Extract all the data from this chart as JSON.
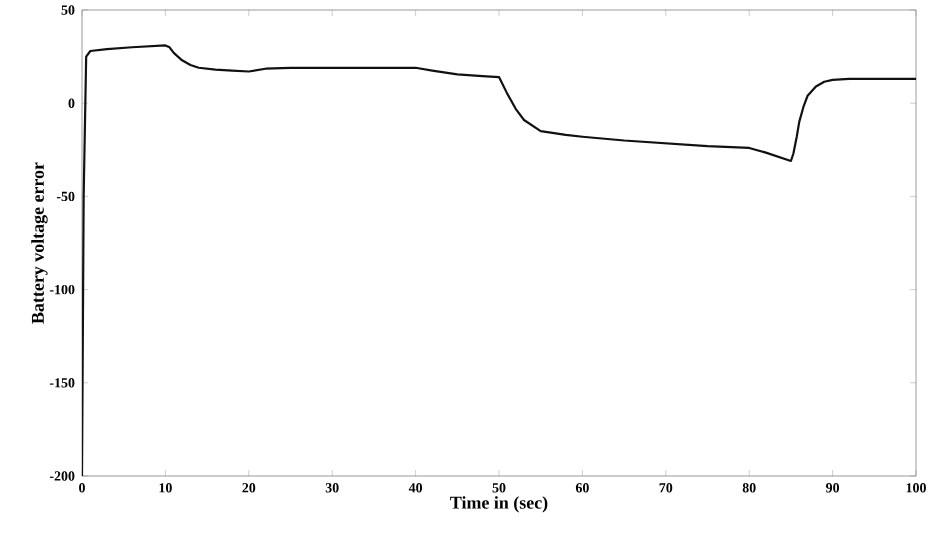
{
  "chart_data": {
    "type": "line",
    "xlabel": "Time in (sec)",
    "ylabel": "Battery voltage error",
    "x": [
      0,
      0.2,
      0.5,
      1,
      3,
      6,
      10,
      10.5,
      11,
      12,
      13,
      14,
      16,
      18,
      20,
      22,
      25,
      30,
      35,
      40,
      42,
      45,
      48,
      50,
      51,
      52,
      53,
      55,
      58,
      60,
      65,
      70,
      75,
      80,
      82,
      85,
      85.3,
      85.7,
      86,
      86.5,
      87,
      88,
      89,
      90,
      92,
      95,
      100
    ],
    "series": [
      {
        "color": "#111111",
        "values": [
          -200,
          -50,
          25,
          28,
          29,
          30,
          31,
          30,
          27,
          23,
          20.5,
          19,
          18,
          17.5,
          17,
          18.5,
          19,
          19,
          19,
          19,
          17.5,
          15.5,
          14.5,
          14,
          5,
          -3,
          -9,
          -15,
          -17,
          -18,
          -20,
          -21.5,
          -23,
          -24,
          -26.5,
          -31,
          -27,
          -18,
          -10,
          -2,
          4,
          9,
          11.5,
          12.5,
          13,
          13,
          13
        ]
      }
    ],
    "xlim": [
      0,
      100
    ],
    "ylim": [
      -200,
      50
    ],
    "xticks": [
      0,
      10,
      20,
      30,
      40,
      50,
      60,
      70,
      80,
      90,
      100
    ],
    "yticks": [
      -200,
      -150,
      -100,
      -50,
      0,
      50
    ],
    "grid": false,
    "marker": "none",
    "line_style": "solid"
  }
}
